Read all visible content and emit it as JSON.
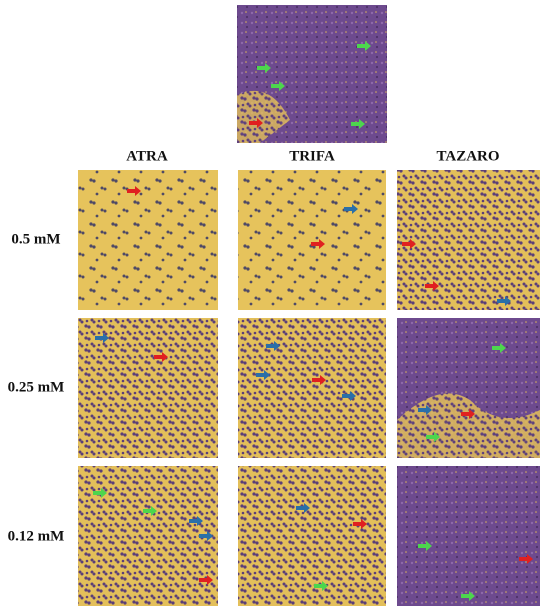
{
  "column_headers": [
    "ATRA",
    "TRIFA",
    "TAZARO"
  ],
  "row_labels": [
    "0.5 mM",
    "0.25 mM",
    "0.12 mM"
  ]
}
